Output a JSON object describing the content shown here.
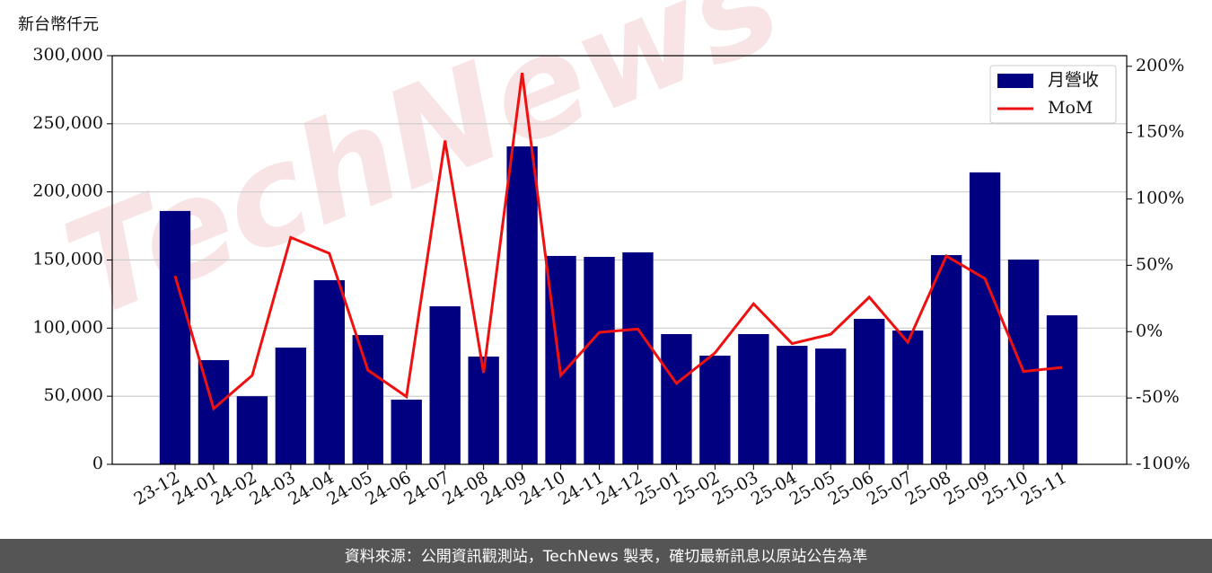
{
  "chart_data": {
    "type": "bar-line",
    "y_axis_label": "新台幣仟元",
    "watermark": "TechNews",
    "source": "資料來源：公開資訊觀測站，TechNews 製表，確切最新訊息以原站公告為準",
    "categories": [
      "23-12",
      "24-01",
      "24-02",
      "24-03",
      "24-04",
      "24-05",
      "24-06",
      "24-07",
      "24-08",
      "24-09",
      "24-10",
      "24-11",
      "24-12",
      "25-01",
      "25-02",
      "25-03",
      "25-04",
      "25-05",
      "25-06",
      "25-07",
      "25-08",
      "25-09",
      "25-10",
      "25-11"
    ],
    "series": [
      {
        "name": "月營收",
        "type": "bar",
        "color": "#000080",
        "values": [
          186000,
          76500,
          50000,
          85700,
          135200,
          94900,
          47500,
          116000,
          79100,
          233400,
          153000,
          152300,
          155600,
          95600,
          79800,
          95600,
          87000,
          85000,
          106800,
          98200,
          153600,
          214300,
          150300,
          109400
        ]
      },
      {
        "name": "MoM",
        "type": "line",
        "axis": "y2",
        "color": "#ee1111",
        "values": [
          42,
          -58,
          -33,
          71,
          59,
          -29,
          -49,
          144,
          -31,
          195,
          -33,
          -0.5,
          2,
          -39,
          -16,
          21,
          -9,
          -2,
          26,
          -8,
          57,
          40,
          -30,
          -27
        ]
      }
    ],
    "ylim": [
      0,
      300000
    ],
    "yticks": [
      0,
      {
        "value": 50000,
        "label": "50,000"
      },
      {
        "value": 100000,
        "label": "100,000"
      },
      {
        "value": 150000,
        "label": "150,000"
      },
      {
        "value": 200000,
        "label": "200,000"
      },
      {
        "value": 250000,
        "label": "250,000"
      },
      {
        "value": 300000,
        "label": "300,000"
      }
    ],
    "y2lim": [
      -100,
      208
    ],
    "y2ticks": [
      {
        "value": -100,
        "label": "-100%"
      },
      {
        "value": -50,
        "label": "-50%"
      },
      {
        "value": 0,
        "label": "0%"
      },
      {
        "value": 50,
        "label": "50%"
      },
      {
        "value": 100,
        "label": "100%"
      },
      {
        "value": 150,
        "label": "150%"
      },
      {
        "value": 200,
        "label": "200%"
      }
    ],
    "grid": true,
    "legend": "upper right"
  }
}
